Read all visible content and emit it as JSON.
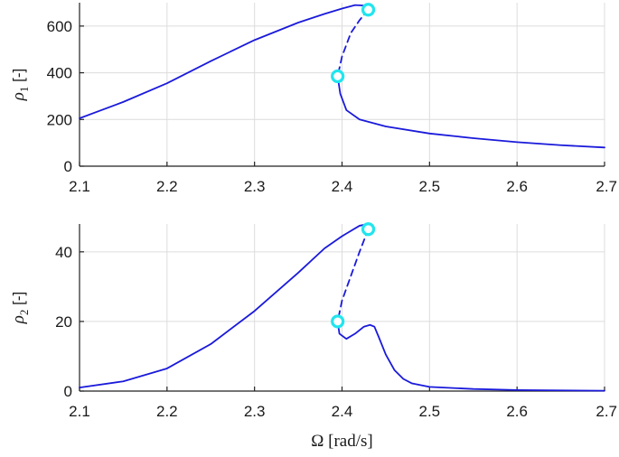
{
  "chart_data": [
    {
      "type": "line",
      "xlabel": "",
      "ylabel": "ρ1 [-]",
      "xlim": [
        2.1,
        2.7
      ],
      "ylim": [
        0,
        700
      ],
      "x_ticks": [
        2.1,
        2.2,
        2.3,
        2.4,
        2.5,
        2.6,
        2.7
      ],
      "x_tick_labels": [
        "2.1",
        "2.2",
        "2.3",
        "2.4",
        "2.5",
        "2.6",
        "2.7"
      ],
      "y_ticks": [
        0,
        200,
        400,
        600
      ],
      "y_tick_labels": [
        "0",
        "200",
        "400",
        "600"
      ],
      "grid": true,
      "series": [
        {
          "style": "solid",
          "color": "#1a1adb",
          "x": [
            2.1,
            2.15,
            2.2,
            2.25,
            2.3,
            2.35,
            2.38,
            2.4,
            2.415,
            2.425,
            2.43
          ],
          "y": [
            205,
            275,
            355,
            450,
            540,
            615,
            652,
            675,
            690,
            688,
            680
          ]
        },
        {
          "style": "dashed",
          "color": "#1a1adb",
          "x": [
            2.43,
            2.42,
            2.41,
            2.4,
            2.395
          ],
          "y": [
            670,
            625,
            570,
            470,
            385
          ]
        },
        {
          "style": "solid",
          "color": "#1a1adb",
          "x": [
            2.395,
            2.398,
            2.405,
            2.42,
            2.45,
            2.5,
            2.55,
            2.6,
            2.65,
            2.7
          ],
          "y": [
            385,
            310,
            240,
            200,
            170,
            140,
            120,
            103,
            90,
            80
          ]
        }
      ],
      "markers": [
        {
          "x": 2.43,
          "y": 670,
          "color": "#22e5ee"
        },
        {
          "x": 2.395,
          "y": 385,
          "color": "#22e5ee"
        }
      ]
    },
    {
      "type": "line",
      "xlabel": "Ω [rad/s]",
      "ylabel": "ρ2 [-]",
      "xlim": [
        2.1,
        2.7
      ],
      "ylim": [
        0,
        48
      ],
      "x_ticks": [
        2.1,
        2.2,
        2.3,
        2.4,
        2.5,
        2.6,
        2.7
      ],
      "x_tick_labels": [
        "2.1",
        "2.2",
        "2.3",
        "2.4",
        "2.5",
        "2.6",
        "2.7"
      ],
      "y_ticks": [
        0,
        20,
        40
      ],
      "y_tick_labels": [
        "0",
        "20",
        "40"
      ],
      "grid": true,
      "series": [
        {
          "style": "solid",
          "color": "#1a1adb",
          "x": [
            2.1,
            2.15,
            2.2,
            2.25,
            2.3,
            2.35,
            2.38,
            2.4,
            2.42,
            2.43
          ],
          "y": [
            1,
            2.8,
            6.5,
            13.5,
            23,
            34,
            41,
            44.5,
            47.5,
            48
          ]
        },
        {
          "style": "dashed",
          "color": "#1a1adb",
          "x": [
            2.43,
            2.42,
            2.41,
            2.4,
            2.395
          ],
          "y": [
            46.5,
            40,
            33,
            26,
            20
          ]
        },
        {
          "style": "solid",
          "color": "#1a1adb",
          "x": [
            2.395,
            2.397,
            2.405,
            2.415,
            2.425,
            2.432,
            2.437,
            2.442,
            2.45,
            2.46,
            2.47,
            2.48,
            2.5,
            2.55,
            2.6,
            2.7
          ],
          "y": [
            20,
            16.5,
            15,
            16.5,
            18.5,
            19,
            18.5,
            15.5,
            10.5,
            6,
            3.5,
            2.2,
            1.2,
            0.6,
            0.3,
            0.1
          ]
        }
      ],
      "markers": [
        {
          "x": 2.43,
          "y": 46.5,
          "color": "#22e5ee"
        },
        {
          "x": 2.395,
          "y": 20,
          "color": "#22e5ee"
        }
      ]
    }
  ]
}
